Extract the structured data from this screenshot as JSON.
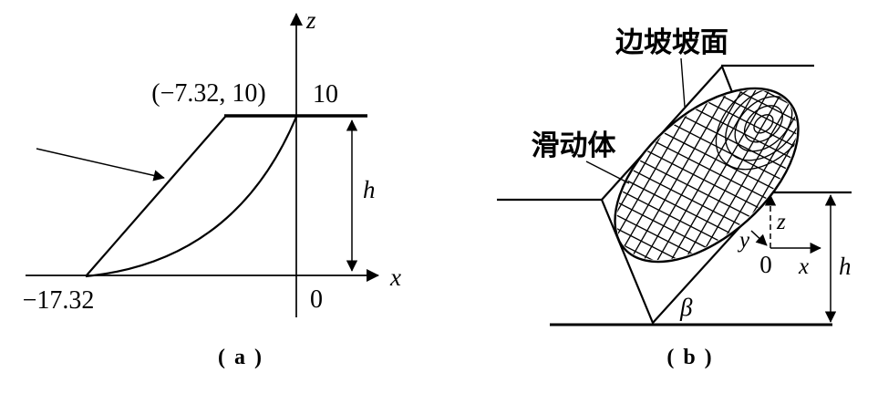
{
  "panel_a": {
    "caption": "( a )",
    "z_axis_label": "z",
    "x_axis_label": "x",
    "crest_point_label": "(−7.32, 10)",
    "crest_height_label": "10",
    "origin_label": "0",
    "toe_coordinate_label": "−17.32",
    "slope_height_label": "h"
  },
  "panel_b": {
    "caption": "( b )",
    "slope_surface_label": "边坡坡面",
    "sliding_body_label": "滑动体",
    "z_axis_label": "z",
    "y_axis_label": "y",
    "x_axis_label": "x",
    "origin_label": "0",
    "slope_height_label": "h",
    "slope_angle_label": "β"
  },
  "colors": {
    "line": "#000000",
    "background": "#ffffff"
  }
}
